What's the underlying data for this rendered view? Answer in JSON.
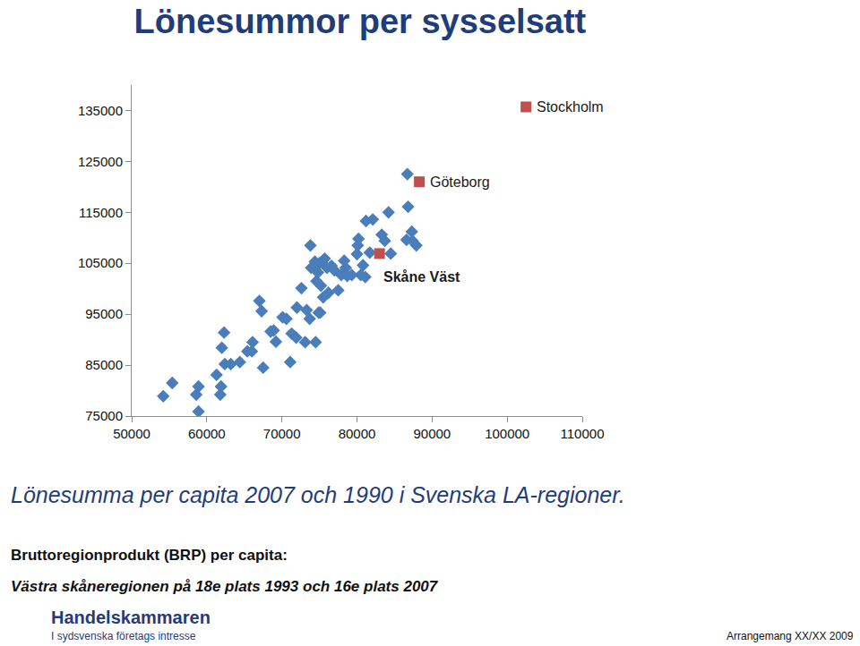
{
  "chart_data": {
    "type": "scatter",
    "title": "Lönesummor per sysselsatt",
    "subtitle": "Lönesumma per capita 2007 och 1990 i Svenska LA-regioner.",
    "annotations": [
      "Bruttoregionprodukt (BRP) per capita:",
      "Västra skåneregionen på 18e plats 1993 och 16e plats 2007",
      "Handelskammaren",
      "I sydsvenska företags intresse",
      "Arrangemang XX/XX 2009"
    ],
    "xlim": [
      50000,
      110000
    ],
    "xticks": [
      50000,
      60000,
      70000,
      80000,
      90000,
      100000,
      110000
    ],
    "ylim": [
      75000,
      140000
    ],
    "yticks": [
      75000,
      85000,
      95000,
      105000,
      115000,
      125000,
      135000
    ],
    "grid": false,
    "series": [
      {
        "color": "#4a7ebb",
        "marker": "diamond",
        "x": [
          54200,
          55400,
          58600,
          58900,
          58900,
          61800,
          61900,
          61300,
          62000,
          62300,
          62400,
          63200,
          64400,
          65400,
          66100,
          66000,
          67000,
          67300,
          67500,
          68500,
          68900,
          69200,
          70100,
          70600,
          71100,
          71300,
          71900,
          72000,
          72600,
          73100,
          73300,
          73700,
          73800,
          73900,
          74400,
          74500,
          74600,
          74800,
          74900,
          75000,
          75100,
          75200,
          75500,
          75700,
          76000,
          76200,
          76600,
          77000,
          77500,
          77900,
          78300,
          78500,
          78700,
          79300,
          80000,
          80100,
          80200,
          80500,
          80800,
          81100,
          81200,
          81700,
          82100,
          83300,
          83700,
          84200,
          84500,
          86600,
          86700,
          86800,
          87300,
          87400,
          87900
        ],
        "y": [
          78900,
          81500,
          79200,
          80800,
          75900,
          79200,
          80800,
          83100,
          88400,
          91400,
          85200,
          85200,
          85600,
          87700,
          89500,
          87700,
          97600,
          95600,
          84500,
          91600,
          91800,
          89600,
          94400,
          94100,
          85600,
          91200,
          90400,
          96300,
          100100,
          89500,
          95800,
          94100,
          108500,
          104100,
          105300,
          89500,
          101500,
          103200,
          95300,
          105000,
          95300,
          100600,
          98300,
          105900,
          104100,
          99200,
          104500,
          103600,
          99700,
          102700,
          105500,
          104100,
          102500,
          102700,
          106800,
          108500,
          109800,
          102700,
          104600,
          102300,
          113300,
          107100,
          113600,
          110600,
          109400,
          115000,
          106900,
          109600,
          122500,
          116100,
          111200,
          109400,
          108500
        ]
      },
      {
        "color": "#c0504d",
        "marker": "square",
        "x": [
          102500,
          88300,
          83000
        ],
        "y": [
          135700,
          121000,
          106900
        ],
        "labels": [
          "Stockholm",
          "Göteborg",
          "Skåne Väst"
        ]
      }
    ]
  }
}
